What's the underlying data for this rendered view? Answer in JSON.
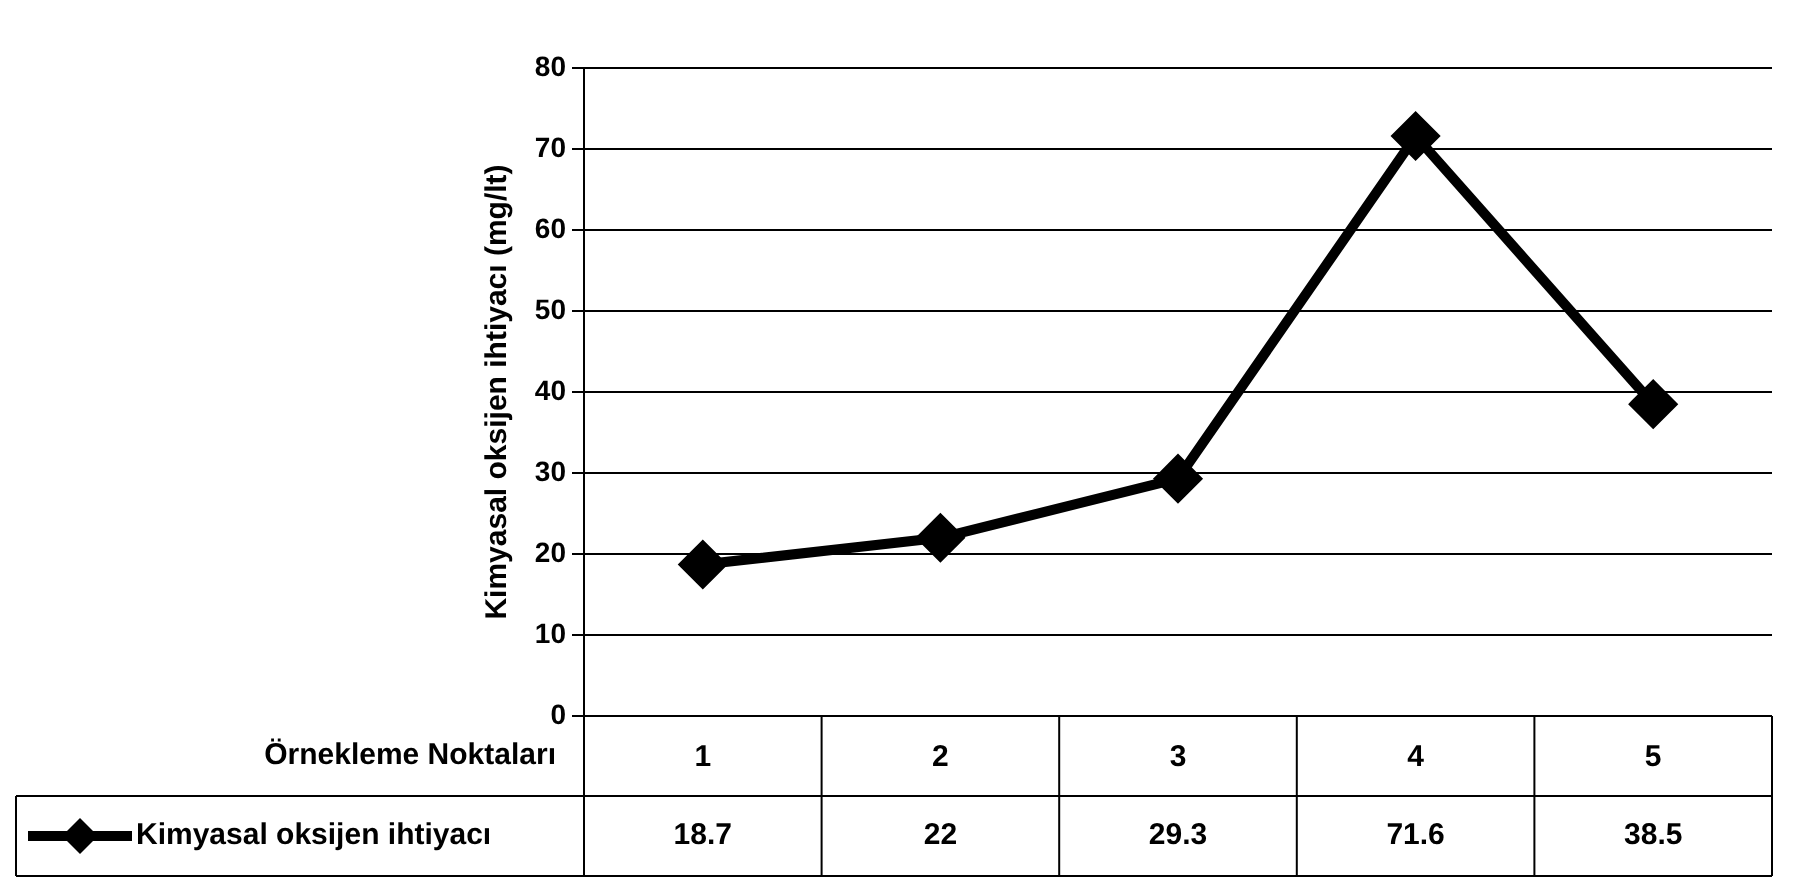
{
  "chart_data": {
    "type": "line",
    "xlabel": "Örnekleme Noktaları",
    "ylabel": "Kimyasal oksijen ihtiyacı (mg/lt)",
    "categories": [
      "1",
      "2",
      "3",
      "4",
      "5"
    ],
    "series": [
      {
        "name": "Kimyasal oksijen ihtiyacı",
        "color": "#000000",
        "values": [
          18.7,
          22,
          29.3,
          71.6,
          38.5
        ]
      }
    ],
    "ylim": [
      0,
      80
    ],
    "yticks": [
      0,
      10,
      20,
      30,
      40,
      50,
      60,
      70,
      80
    ],
    "grid": "y",
    "marker": "diamond",
    "line_style": "solid",
    "legend": "bottom left",
    "data_labels": true
  }
}
